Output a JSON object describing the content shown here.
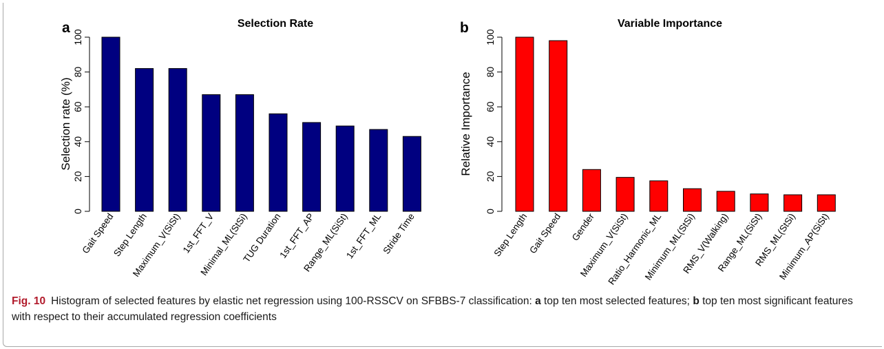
{
  "figure": {
    "caption": {
      "label": "Fig. 10",
      "part1": "Histogram of selected features by elastic net regression using 100-RSSCV on SFBBS-7 classification: ",
      "a_ref": "a",
      "part2": " top ten most selected features; ",
      "b_ref": "b",
      "part3": " top ten most significant features with respect to their accumulated regression coefficients"
    }
  },
  "chart_data": [
    {
      "panel": "a",
      "type": "bar",
      "title": "Selection Rate",
      "xlabel": "",
      "ylabel": "Selection rate (%)",
      "ylim": [
        0,
        100
      ],
      "yticks": [
        0,
        20,
        40,
        60,
        80,
        100
      ],
      "bar_color": "#000080",
      "categories": [
        "Gait Speed",
        "Step Length",
        "Maximum_V(SiSt)",
        "1st_FFT_V",
        "Minimal_ML(StSi)",
        "TUG Duration",
        "1st_FFT_AP",
        "Range_ML(SiSt)",
        "1st_FFT_ML",
        "Stride Time"
      ],
      "values": [
        100,
        82,
        82,
        67,
        67,
        56,
        51,
        49,
        47,
        43
      ]
    },
    {
      "panel": "b",
      "type": "bar",
      "title": "Variable Importance",
      "xlabel": "",
      "ylabel": "Relative Importance",
      "ylim": [
        0,
        100
      ],
      "yticks": [
        0,
        20,
        40,
        60,
        80,
        100
      ],
      "bar_color": "#ff0000",
      "categories": [
        "Step Length",
        "Gait Speed",
        "Gender",
        "Maximum_V(SiSt)",
        "Ratio_Harmonic_ML",
        "Minimum_ML(StSi)",
        "RMS_V(Walking)",
        "Range_ML(SiSt)",
        "RMS_ML(StSi)",
        "Minimum_AP(SiSt)"
      ],
      "values": [
        100,
        98,
        24,
        19.5,
        17.5,
        13,
        11.5,
        10,
        9.5,
        9.5
      ]
    }
  ]
}
